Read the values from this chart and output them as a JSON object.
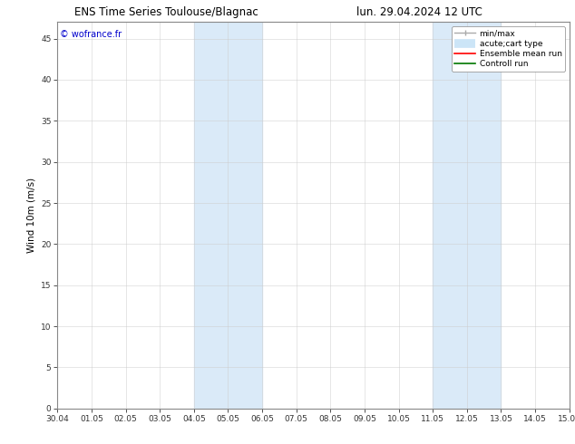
{
  "title_left": "ENS Time Series Toulouse/Blagnac",
  "title_right": "lun. 29.04.2024 12 UTC",
  "ylabel": "Wind 10m (m/s)",
  "watermark": "© wofrance.fr",
  "background_color": "#ffffff",
  "plot_bg_color": "#ffffff",
  "shaded_bands": [
    {
      "xstart": 4.0,
      "xend": 6.0,
      "color": "#daeaf8"
    },
    {
      "xstart": 11.0,
      "xend": 13.0,
      "color": "#daeaf8"
    }
  ],
  "xlim": [
    0,
    15
  ],
  "ylim": [
    0,
    47
  ],
  "xtick_labels": [
    "30.04",
    "01.05",
    "02.05",
    "03.05",
    "04.05",
    "05.05",
    "06.05",
    "07.05",
    "08.05",
    "09.05",
    "10.05",
    "11.05",
    "12.05",
    "13.05",
    "14.05",
    "15.05"
  ],
  "xtick_positions": [
    0,
    1,
    2,
    3,
    4,
    5,
    6,
    7,
    8,
    9,
    10,
    11,
    12,
    13,
    14,
    15
  ],
  "ytick_positions": [
    0,
    5,
    10,
    15,
    20,
    25,
    30,
    35,
    40,
    45
  ],
  "title_fontsize": 8.5,
  "axis_label_fontsize": 7.5,
  "tick_fontsize": 6.5,
  "legend_fontsize": 6.5,
  "watermark_color": "#0000cc",
  "watermark_fontsize": 7,
  "grid_color": "#cccccc",
  "grid_alpha": 0.7,
  "legend_entry_min_max_color": "#aaaaaa",
  "legend_entry_band_color": "#cce5f7",
  "legend_entry_ensemble_color": "#ff0000",
  "legend_entry_control_color": "#007700"
}
